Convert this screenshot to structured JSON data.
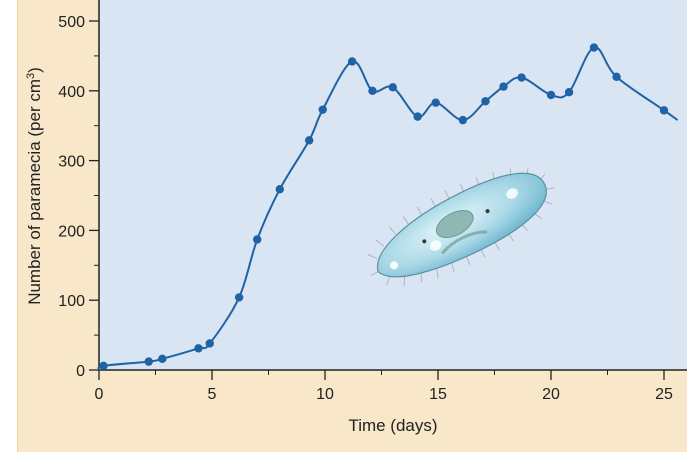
{
  "chart_data": {
    "type": "line",
    "xlabel": "Time (days)",
    "ylabel_main": "Number of paramecia (per cm",
    "ylabel_sup": "3",
    "ylabel_close": ")",
    "xlim": [
      0,
      25.7
    ],
    "ylim": [
      0,
      510
    ],
    "xticks": [
      0,
      5,
      10,
      15,
      20,
      25
    ],
    "yticks": [
      0,
      100,
      200,
      300,
      400,
      500
    ],
    "xtick_labels": [
      "0",
      "5",
      "10",
      "15",
      "20",
      "25"
    ],
    "ytick_labels": [
      "0",
      "100",
      "200",
      "300",
      "400",
      "500"
    ],
    "minor_xticks": [
      2.5,
      7.5,
      12.5,
      17.5,
      22.5
    ],
    "minor_yticks": [
      50,
      150,
      250,
      350,
      450
    ],
    "grid": false,
    "series": [
      {
        "points": [
          {
            "x": 0.2,
            "y": 6
          },
          {
            "x": 2.2,
            "y": 12
          },
          {
            "x": 2.8,
            "y": 16
          },
          {
            "x": 4.4,
            "y": 31
          },
          {
            "x": 4.9,
            "y": 38
          },
          {
            "x": 6.2,
            "y": 104
          },
          {
            "x": 7.0,
            "y": 187
          },
          {
            "x": 8.0,
            "y": 259
          },
          {
            "x": 9.3,
            "y": 329
          },
          {
            "x": 9.9,
            "y": 373
          },
          {
            "x": 11.2,
            "y": 442
          },
          {
            "x": 12.1,
            "y": 400
          },
          {
            "x": 13.0,
            "y": 405
          },
          {
            "x": 14.1,
            "y": 363
          },
          {
            "x": 14.9,
            "y": 383
          },
          {
            "x": 16.1,
            "y": 358
          },
          {
            "x": 17.1,
            "y": 385
          },
          {
            "x": 17.9,
            "y": 406
          },
          {
            "x": 18.7,
            "y": 419
          },
          {
            "x": 20.0,
            "y": 394
          },
          {
            "x": 20.8,
            "y": 398
          },
          {
            "x": 21.9,
            "y": 462
          },
          {
            "x": 22.9,
            "y": 420
          },
          {
            "x": 25.0,
            "y": 372
          }
        ],
        "curve_end": {
          "x": 25.6,
          "y": 358
        }
      }
    ],
    "colors": {
      "series": "#1f63a6",
      "plot_background": "#d9e5f2",
      "figure_background": "#f8e7c8",
      "axis": "#222222"
    }
  },
  "illustration": {
    "icon": "paramecium-icon"
  }
}
